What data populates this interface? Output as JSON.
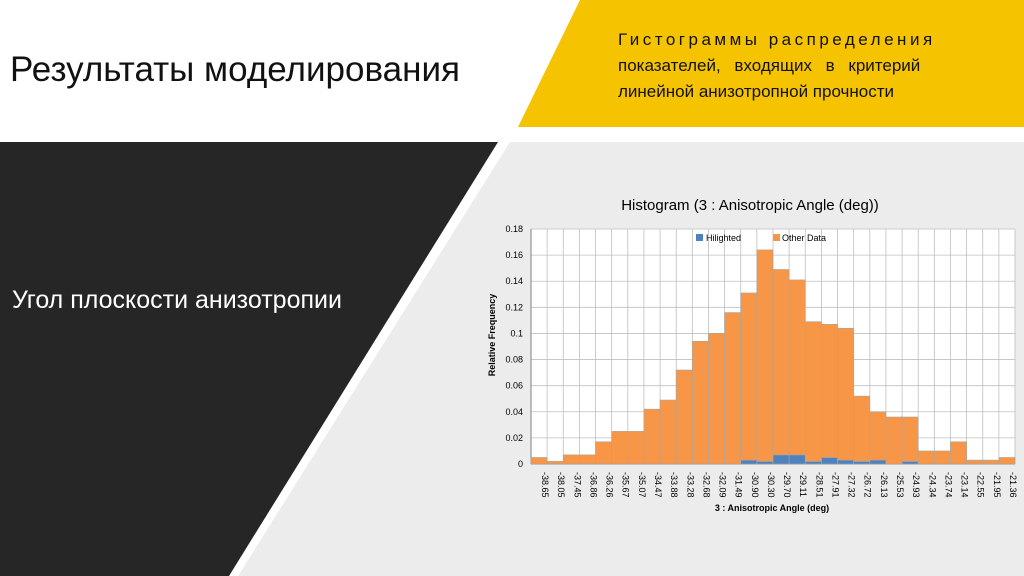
{
  "slide": {
    "title": "Результаты моделирования",
    "subtitle_lines": [
      "Гистограммы распределения",
      "показателей, входящих в критерий",
      "линейной анизотропной прочности"
    ],
    "left_label": "Угол плоскости анизотропии",
    "colors": {
      "dark_panel": "#262626",
      "accent": "#f5c300",
      "chart_bg": "#ececec"
    }
  },
  "chart_data": {
    "type": "bar",
    "stacked": true,
    "title": "Histogram (3 : Anisotropic Angle (deg))",
    "xlabel": "3 : Anisotropic Angle (deg)",
    "ylabel": "Relative Frequency",
    "ylim": [
      0,
      0.18
    ],
    "yticks": [
      "0",
      "0.02",
      "0.04",
      "0.06",
      "0.08",
      "0.1",
      "0.12",
      "0.14",
      "0.16",
      "0.18"
    ],
    "grid": true,
    "legend_position": "top-center",
    "categories": [
      "-38.65",
      "-38.05",
      "-37.45",
      "-36.86",
      "-36.26",
      "-35.67",
      "-35.07",
      "-34.47",
      "-33.88",
      "-33.28",
      "-32.68",
      "-32.09",
      "-31.49",
      "-30.90",
      "-30.30",
      "-29.70",
      "-29.11",
      "-28.51",
      "-27.91",
      "-27.32",
      "-26.72",
      "-26.13",
      "-25.53",
      "-24.93",
      "-24.34",
      "-23.74",
      "-23.14",
      "-22.55",
      "-21.95",
      "-21.36"
    ],
    "series": [
      {
        "name": "Hilighted",
        "color": "#4f81bd",
        "values": [
          0,
          0,
          0,
          0,
          0,
          0,
          0,
          0,
          0,
          0,
          0,
          0,
          0,
          0.003,
          0.002,
          0.007,
          0.007,
          0.002,
          0.005,
          0.003,
          0.002,
          0.003,
          0,
          0.002,
          0,
          0,
          0,
          0,
          0,
          0
        ]
      },
      {
        "name": "Other Data",
        "color": "#f79646",
        "values": [
          0.005,
          0.002,
          0.007,
          0.007,
          0.017,
          0.025,
          0.025,
          0.042,
          0.049,
          0.072,
          0.094,
          0.1,
          0.116,
          0.128,
          0.162,
          0.142,
          0.134,
          0.107,
          0.102,
          0.101,
          0.05,
          0.037,
          0.036,
          0.034,
          0.01,
          0.01,
          0.017,
          0.003,
          0.003,
          0.005
        ]
      }
    ]
  }
}
